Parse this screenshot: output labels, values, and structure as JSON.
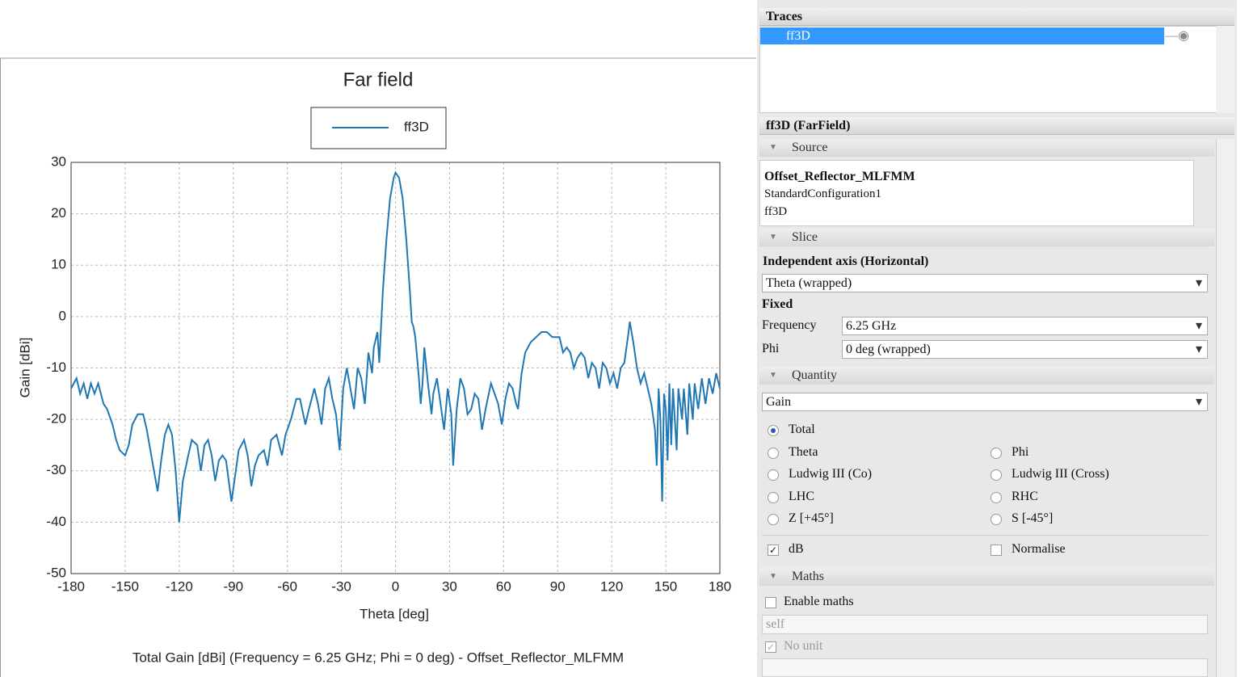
{
  "chart_data": {
    "type": "line",
    "title": "Far field",
    "xlabel": "Theta [deg]",
    "ylabel": "Gain [dBi]",
    "caption": "Total Gain [dBi] (Frequency = 6.25 GHz; Phi = 0 deg) - Offset_Reflector_MLFMM",
    "x": [
      -180,
      -177,
      -175,
      -173,
      -171,
      -169,
      -167,
      -165,
      -162,
      -160,
      -157,
      -155,
      -153,
      -150,
      -148,
      -146,
      -143,
      -140,
      -138,
      -136,
      -134,
      -132,
      -130,
      -128,
      -126,
      -124,
      -122,
      -120,
      -118,
      -115,
      -113,
      -110,
      -108,
      -106,
      -104,
      -102,
      -100,
      -98,
      -96,
      -94,
      -91,
      -89,
      -87,
      -84,
      -82,
      -80,
      -78,
      -76,
      -73,
      -71,
      -69,
      -66,
      -63,
      -61,
      -58,
      -55,
      -53,
      -50,
      -48,
      -45,
      -43,
      -41,
      -39,
      -37,
      -35,
      -33,
      -31,
      -29,
      -27,
      -25,
      -23,
      -21,
      -19,
      -17,
      -15,
      -13,
      -12,
      -10,
      -9,
      -7,
      -5,
      -3,
      -1,
      0,
      2,
      4,
      6,
      8,
      9,
      10,
      11,
      12,
      13,
      14,
      15,
      16,
      18,
      20,
      21,
      23,
      25,
      27,
      29,
      31,
      32,
      34,
      36,
      38,
      40,
      42,
      44,
      46,
      48,
      50,
      53,
      55,
      57,
      59,
      61,
      63,
      65,
      67,
      68,
      70,
      72,
      75,
      78,
      81,
      84,
      87,
      89,
      91,
      93,
      95,
      97,
      99,
      101,
      103,
      105,
      107,
      109,
      111,
      113,
      115,
      117,
      119,
      121,
      123,
      125,
      127,
      129,
      130,
      132,
      134,
      136,
      138,
      140,
      142,
      144,
      145,
      146,
      147,
      148,
      149,
      150,
      151,
      152,
      153,
      154,
      156,
      157,
      159,
      160,
      162,
      163,
      165,
      166,
      168,
      170,
      172,
      174,
      176,
      178,
      180
    ],
    "series": [
      {
        "name": "ff3D",
        "color": "#1f77b4",
        "values": [
          -14,
          -12,
          -15,
          -13,
          -16,
          -13,
          -15,
          -13,
          -17,
          -18,
          -21,
          -24,
          -26,
          -27,
          -25,
          -21,
          -19,
          -19,
          -22,
          -26,
          -30,
          -34,
          -28,
          -23,
          -21,
          -23,
          -30,
          -40,
          -32,
          -27,
          -24,
          -25,
          -30,
          -25,
          -24,
          -27,
          -32,
          -28,
          -27,
          -28,
          -36,
          -31,
          -26,
          -24,
          -27,
          -33,
          -29,
          -27,
          -26,
          -29,
          -24,
          -23,
          -27,
          -23,
          -20,
          -16,
          -16,
          -21,
          -18,
          -14,
          -17,
          -21,
          -14,
          -12,
          -16,
          -19,
          -26,
          -14,
          -10,
          -14,
          -18,
          -10,
          -12,
          -17,
          -7,
          -11,
          -6,
          -3,
          -9,
          5,
          15,
          23,
          27,
          28,
          27,
          23,
          15,
          5,
          -1,
          -2,
          -4,
          -8,
          -12,
          -17,
          -13,
          -6,
          -13,
          -19,
          -15,
          -12,
          -17,
          -22,
          -14,
          -19,
          -29,
          -18,
          -12,
          -14,
          -19,
          -18,
          -15,
          -16,
          -22,
          -18,
          -13,
          -15,
          -17,
          -21,
          -16,
          -13,
          -14,
          -17,
          -18,
          -11,
          -7,
          -5,
          -4,
          -3,
          -3,
          -4,
          -4,
          -4,
          -7,
          -6,
          -7,
          -10,
          -8,
          -7,
          -8,
          -12,
          -9,
          -10,
          -14,
          -9,
          -10,
          -13,
          -11,
          -14,
          -10,
          -9,
          -4,
          -1,
          -5,
          -10,
          -13,
          -11,
          -14,
          -17,
          -22,
          -29,
          -14,
          -20,
          -36,
          -15,
          -18,
          -28,
          -13,
          -25,
          -14,
          -26,
          -14,
          -20,
          -14,
          -23,
          -13,
          -20,
          -13,
          -18,
          -12,
          -17,
          -12,
          -15,
          -11,
          -14
        ]
      }
    ],
    "xlim": [
      -180,
      180
    ],
    "xticks": [
      -180,
      -150,
      -120,
      -90,
      -60,
      -30,
      0,
      30,
      60,
      90,
      120,
      150,
      180
    ],
    "ylim": [
      -50,
      30
    ],
    "yticks": [
      -50,
      -40,
      -30,
      -20,
      -10,
      0,
      10,
      20,
      30
    ],
    "grid": true
  },
  "panel": {
    "traces": {
      "header": "Traces",
      "items": [
        "ff3D"
      ]
    },
    "properties": {
      "title": "ff3D (FarField)",
      "source": {
        "header": "Source",
        "lines": [
          "Offset_Reflector_MLFMM",
          "StandardConfiguration1",
          "ff3D"
        ]
      },
      "slice": {
        "header": "Slice",
        "axis_label": "Independent axis (Horizontal)",
        "axis_value": "Theta (wrapped)",
        "fixed_label": "Fixed",
        "fields": [
          {
            "label": "Frequency",
            "value": "6.25 GHz"
          },
          {
            "label": "Phi",
            "value": "0 deg (wrapped)"
          }
        ]
      },
      "quantity": {
        "header": "Quantity",
        "value": "Gain",
        "options": [
          "Total",
          "Theta",
          "Phi",
          "Ludwig III (Co)",
          "Ludwig III (Cross)",
          "LHC",
          "RHC",
          "Z [+45°]",
          "S [-45°]"
        ],
        "selected": 0,
        "checkboxes": [
          {
            "label": "dB",
            "checked": true
          },
          {
            "label": "Normalise",
            "checked": false
          }
        ]
      },
      "maths": {
        "header": "Maths",
        "enable": {
          "label": "Enable maths",
          "checked": false
        },
        "expression": "self",
        "no_unit": {
          "label": "No unit",
          "checked": true
        }
      }
    }
  }
}
